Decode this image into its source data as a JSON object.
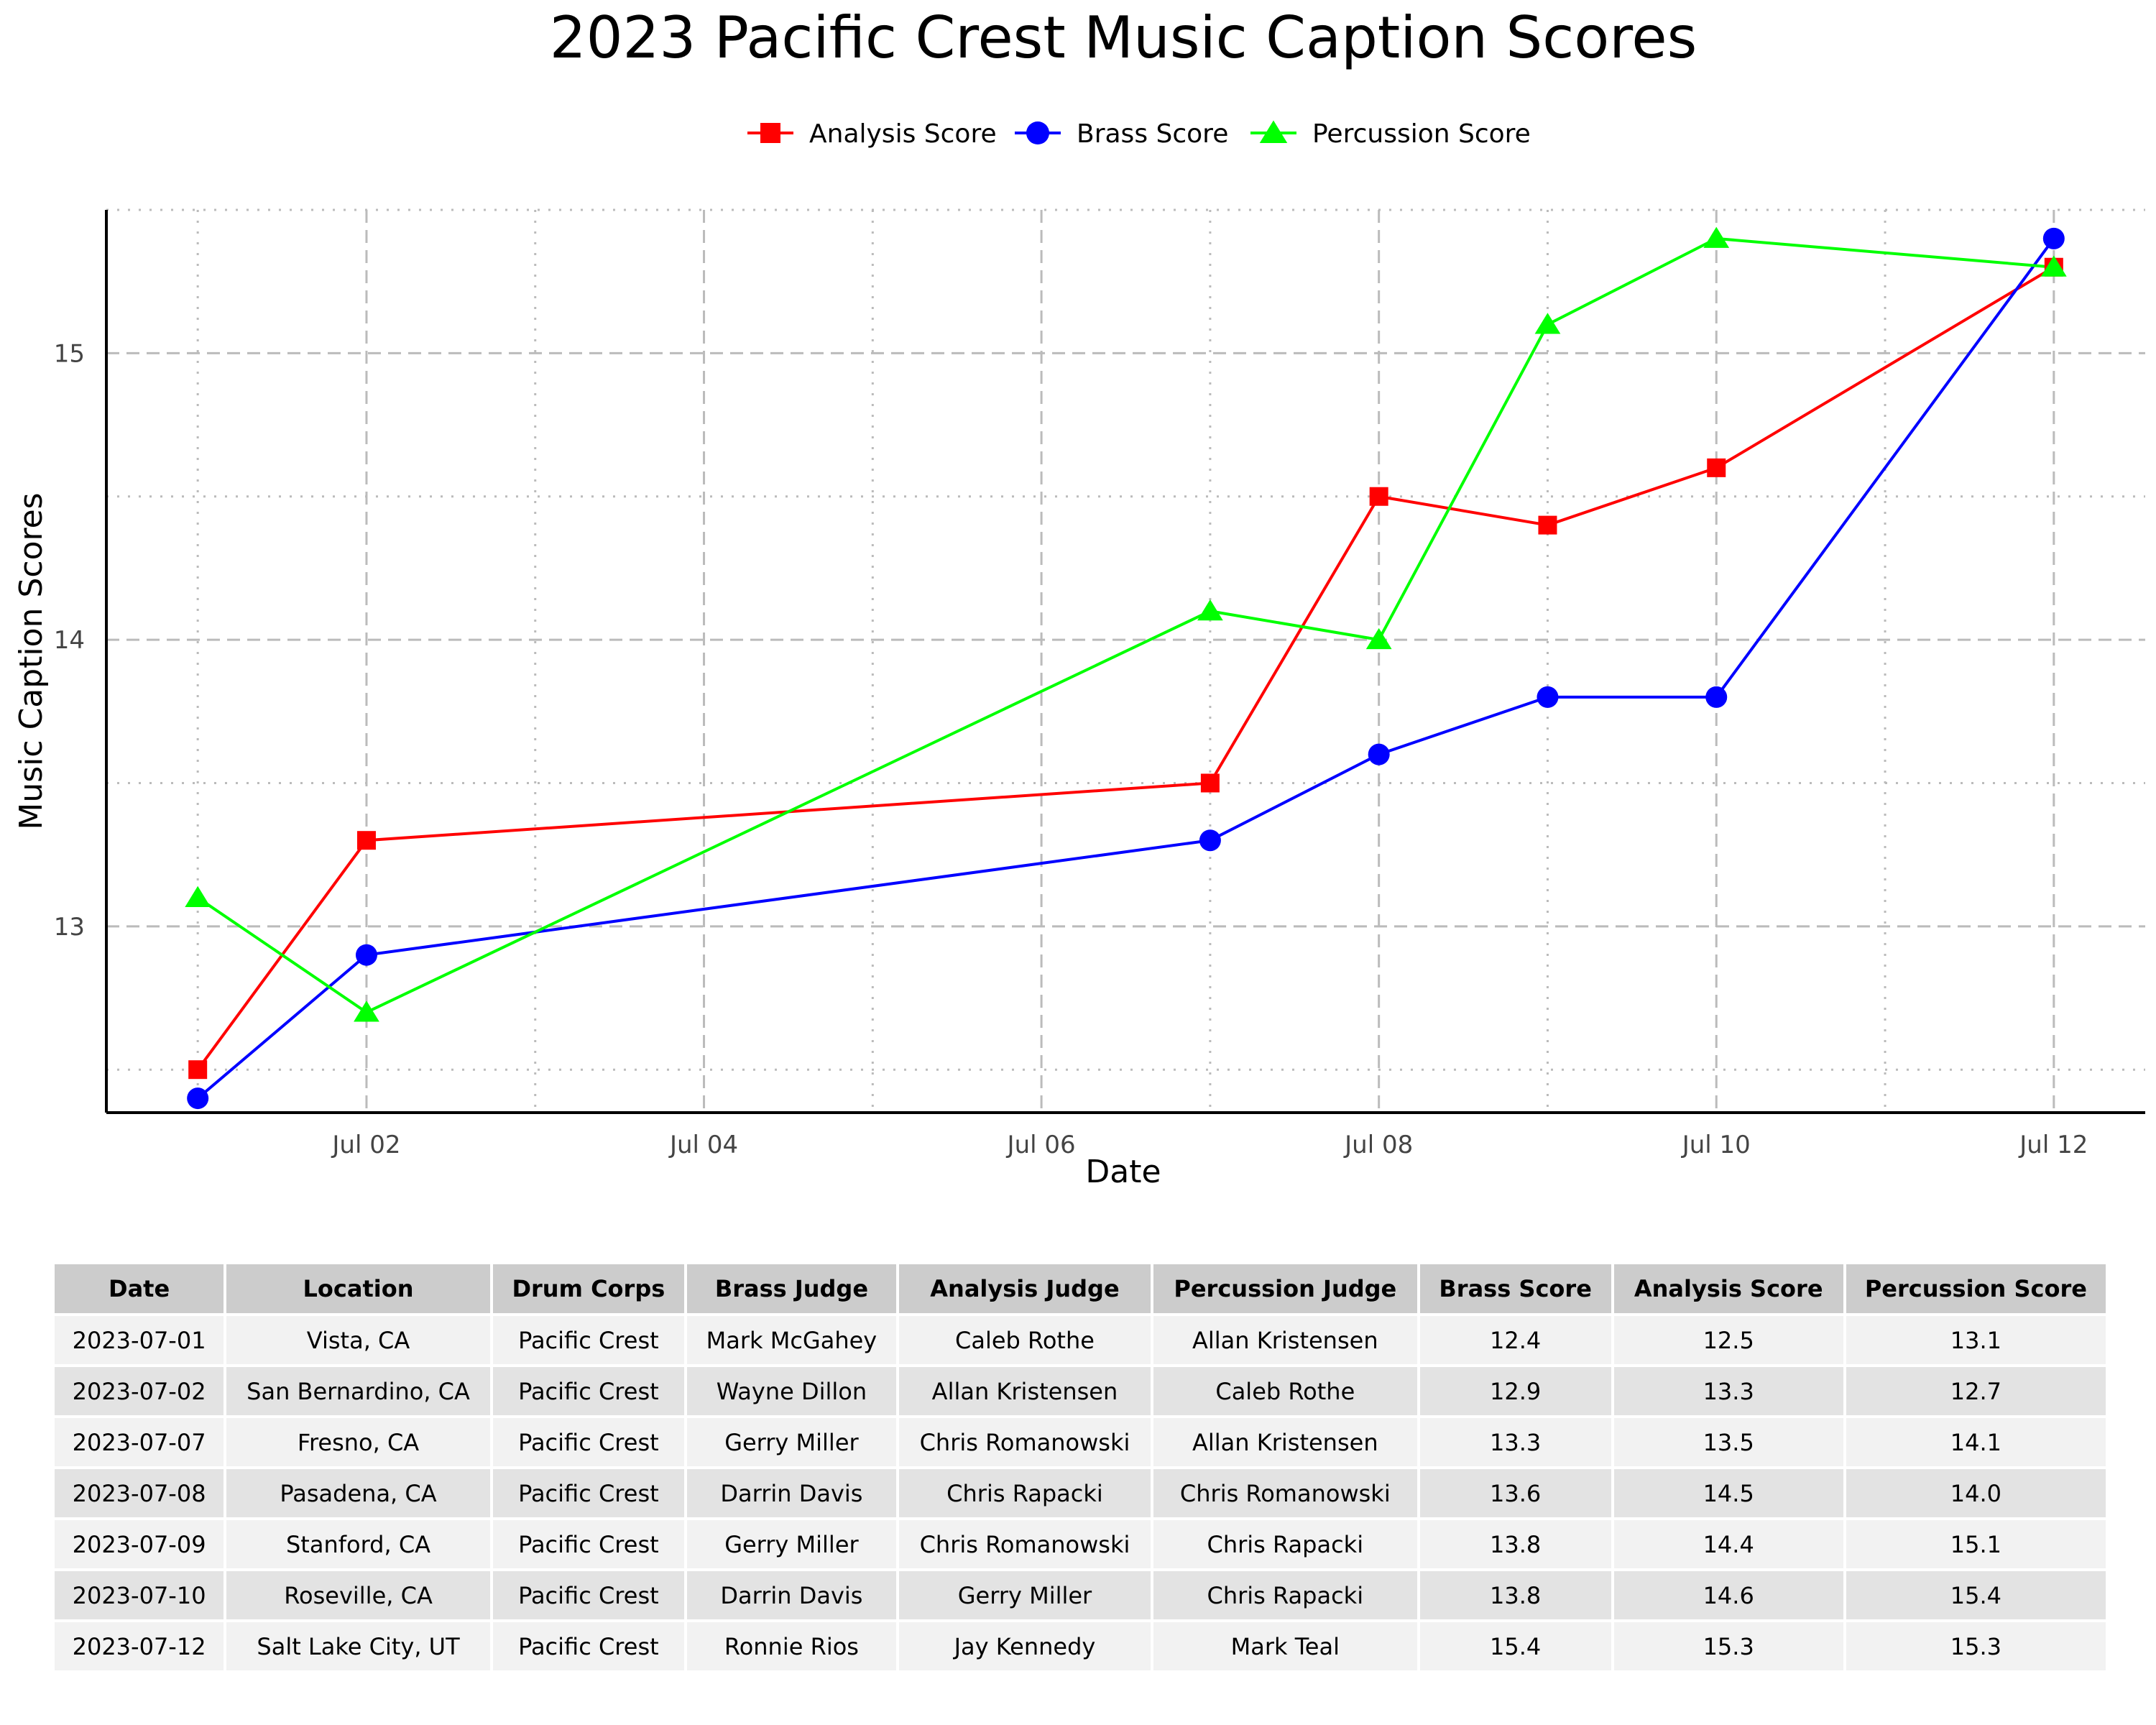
{
  "chart_data": {
    "type": "line",
    "title": "2023 Pacific Crest Music Caption Scores",
    "xlabel": "Date",
    "ylabel": "Music Caption Scores",
    "x": [
      "2023-07-01",
      "2023-07-02",
      "2023-07-07",
      "2023-07-08",
      "2023-07-09",
      "2023-07-10",
      "2023-07-12"
    ],
    "x_ticks": [
      "Jul 02",
      "Jul 04",
      "Jul 06",
      "Jul 08",
      "Jul 10",
      "Jul 12"
    ],
    "y_ticks": [
      "13",
      "14",
      "15"
    ],
    "ylim": [
      12.35,
      15.5
    ],
    "xlim": [
      "2023-06-30T11:00",
      "2023-07-12T13:00"
    ],
    "grid": true,
    "legend_position": "top",
    "series": [
      {
        "name": "Analysis Score",
        "color": "#ff0000",
        "marker": "square",
        "values": [
          12.5,
          13.3,
          13.5,
          14.5,
          14.4,
          14.6,
          15.3
        ]
      },
      {
        "name": "Brass Score",
        "color": "#0000ff",
        "marker": "circle",
        "values": [
          12.4,
          12.9,
          13.3,
          13.6,
          13.8,
          13.8,
          15.4
        ]
      },
      {
        "name": "Percussion Score",
        "color": "#00ff00",
        "marker": "triangle",
        "values": [
          13.1,
          12.7,
          14.1,
          14.0,
          15.1,
          15.4,
          15.3
        ]
      }
    ]
  },
  "table": {
    "headers": [
      "Date",
      "Location",
      "Drum Corps",
      "Brass Judge",
      "Analysis Judge",
      "Percussion Judge",
      "Brass Score",
      "Analysis Score",
      "Percussion Score"
    ],
    "rows": [
      [
        "2023-07-01",
        "Vista, CA",
        "Pacific Crest",
        "Mark McGahey",
        "Caleb Rothe",
        "Allan Kristensen",
        "12.4",
        "12.5",
        "13.1"
      ],
      [
        "2023-07-02",
        "San Bernardino, CA",
        "Pacific Crest",
        "Wayne Dillon",
        "Allan Kristensen",
        "Caleb Rothe",
        "12.9",
        "13.3",
        "12.7"
      ],
      [
        "2023-07-07",
        "Fresno, CA",
        "Pacific Crest",
        "Gerry Miller",
        "Chris Romanowski",
        "Allan Kristensen",
        "13.3",
        "13.5",
        "14.1"
      ],
      [
        "2023-07-08",
        "Pasadena, CA",
        "Pacific Crest",
        "Darrin Davis",
        "Chris Rapacki",
        "Chris Romanowski",
        "13.6",
        "14.5",
        "14.0"
      ],
      [
        "2023-07-09",
        "Stanford, CA",
        "Pacific Crest",
        "Gerry Miller",
        "Chris Romanowski",
        "Chris Rapacki",
        "13.8",
        "14.4",
        "15.1"
      ],
      [
        "2023-07-10",
        "Roseville, CA",
        "Pacific Crest",
        "Darrin Davis",
        "Gerry Miller",
        "Chris Rapacki",
        "13.8",
        "14.6",
        "15.4"
      ],
      [
        "2023-07-12",
        "Salt Lake City, UT",
        "Pacific Crest",
        "Ronnie Rios",
        "Jay Kennedy",
        "Mark Teal",
        "15.4",
        "15.3",
        "15.3"
      ]
    ]
  }
}
